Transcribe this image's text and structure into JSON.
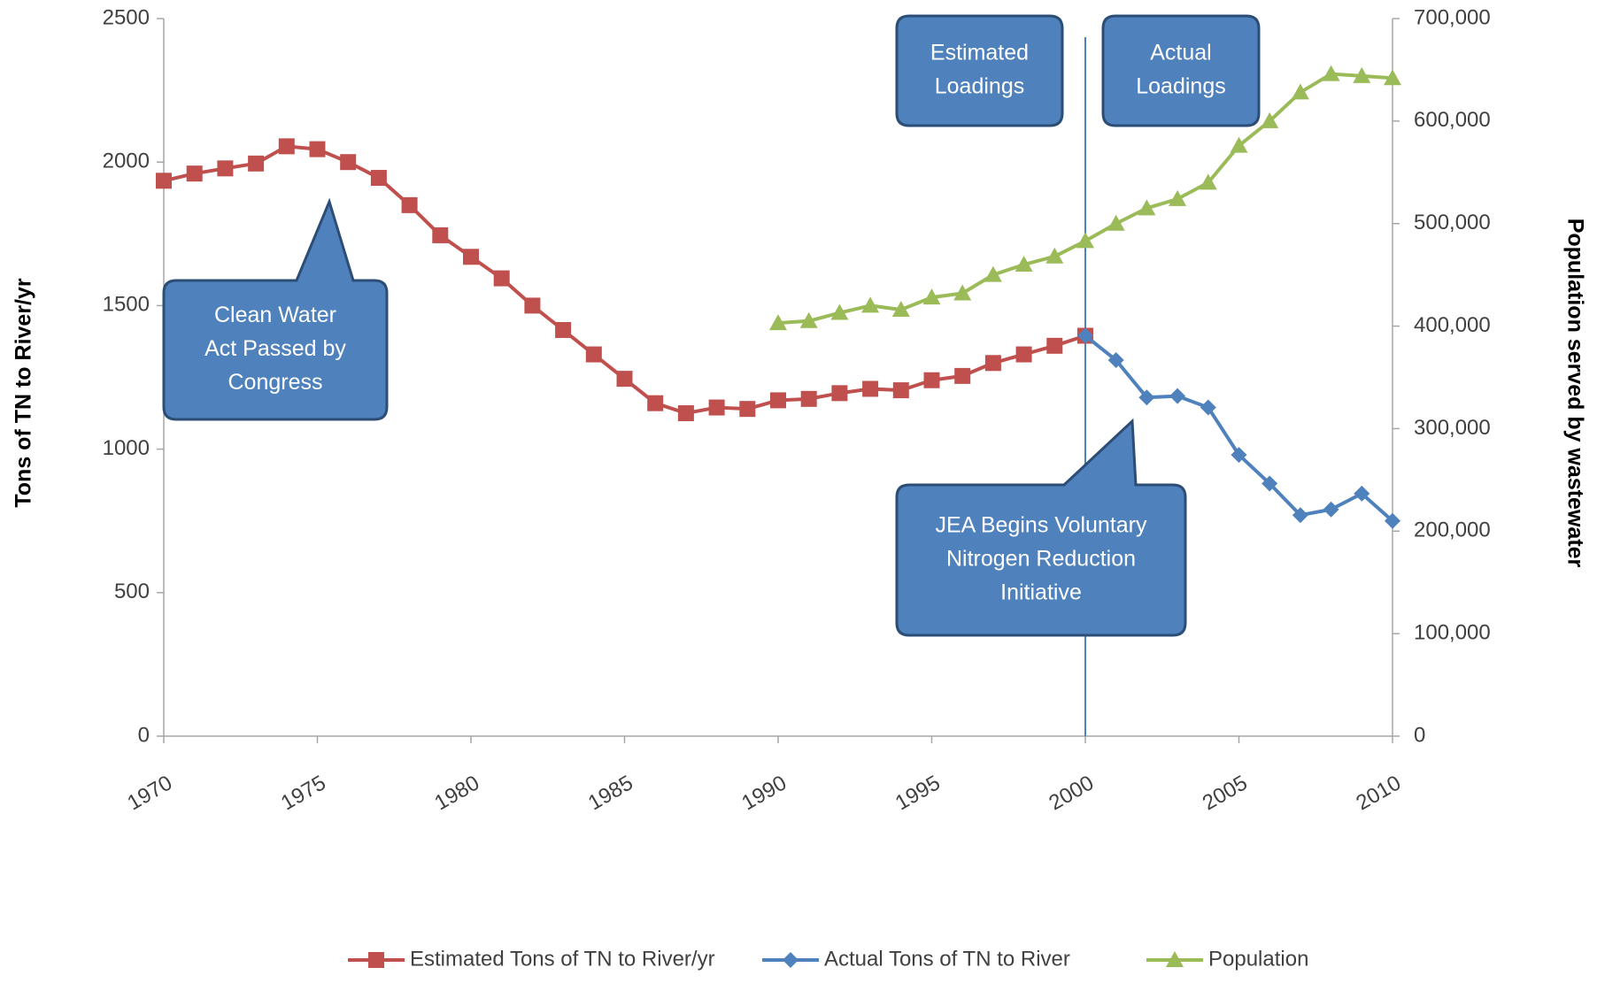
{
  "chart_data": {
    "type": "line",
    "y_label": "Tons of TN to River/yr",
    "y2_label": "Population served by wastewater",
    "x": [
      1970,
      1971,
      1972,
      1973,
      1974,
      1975,
      1976,
      1977,
      1978,
      1979,
      1980,
      1981,
      1982,
      1983,
      1984,
      1985,
      1986,
      1987,
      1988,
      1989,
      1990,
      1991,
      1992,
      1993,
      1994,
      1995,
      1996,
      1997,
      1998,
      1999,
      2000,
      2001,
      2002,
      2003,
      2004,
      2005,
      2006,
      2007,
      2008,
      2009,
      2010
    ],
    "xlim": [
      1970,
      2010
    ],
    "xticks": [
      1970,
      1975,
      1980,
      1985,
      1990,
      1995,
      2000,
      2005,
      2010
    ],
    "ylim": [
      0,
      2500
    ],
    "yticks": [
      0,
      500,
      1000,
      1500,
      2000,
      2500
    ],
    "y2lim": [
      0,
      700000
    ],
    "y2ticks": [
      0,
      {
        "value": 100000,
        "label": "100,000"
      },
      {
        "value": 200000,
        "label": "200,000"
      },
      {
        "value": 300000,
        "label": "300,000"
      },
      {
        "value": 400000,
        "label": "400,000"
      },
      {
        "value": 500000,
        "label": "500,000"
      },
      {
        "value": 600000,
        "label": "600,000"
      },
      {
        "value": 700000,
        "label": "700,000"
      }
    ],
    "grid": false,
    "legend": "bottom",
    "series": [
      {
        "name": "Estimated Tons of TN to River/yr",
        "color": "#c0504d",
        "marker": "square",
        "values": [
          1935,
          1960,
          1978,
          1995,
          2055,
          2045,
          2000,
          1945,
          1850,
          1745,
          1670,
          1595,
          1500,
          1415,
          1330,
          1245,
          1160,
          1125,
          1145,
          1140,
          1170,
          1175,
          1195,
          1210,
          1205,
          1240,
          1255,
          1300,
          1330,
          1360,
          1395,
          null,
          null,
          null,
          null,
          null,
          null,
          null,
          null,
          null,
          null
        ]
      },
      {
        "name": "Actual Tons of TN to River",
        "color": "#4f81bd",
        "marker": "diamond",
        "values": [
          null,
          null,
          null,
          null,
          null,
          null,
          null,
          null,
          null,
          null,
          null,
          null,
          null,
          null,
          null,
          null,
          null,
          null,
          null,
          null,
          null,
          null,
          null,
          null,
          null,
          null,
          null,
          null,
          null,
          null,
          1395,
          1310,
          1180,
          1185,
          1145,
          980,
          880,
          770,
          790,
          845,
          750
        ]
      },
      {
        "name": "Population",
        "color": "#9bbb59",
        "marker": "triangle",
        "axis": "y2",
        "values": [
          null,
          null,
          null,
          null,
          null,
          null,
          null,
          null,
          null,
          null,
          null,
          null,
          null,
          null,
          null,
          null,
          null,
          null,
          null,
          null,
          403000,
          405000,
          413000,
          420000,
          416000,
          428000,
          432000,
          450000,
          460000,
          468000,
          483000,
          500000,
          515000,
          524000,
          540000,
          576000,
          600000,
          628000,
          646000,
          644000,
          642000
        ]
      }
    ],
    "annotations": [
      {
        "text": [
          "Estimated",
          "Loadings"
        ]
      },
      {
        "text": [
          "Actual",
          "Loadings"
        ]
      },
      {
        "text": [
          "Clean Water",
          "Act Passed by",
          "Congress"
        ]
      },
      {
        "text": [
          "JEA Begins Voluntary",
          "Nitrogen Reduction",
          "Initiative"
        ]
      }
    ]
  }
}
